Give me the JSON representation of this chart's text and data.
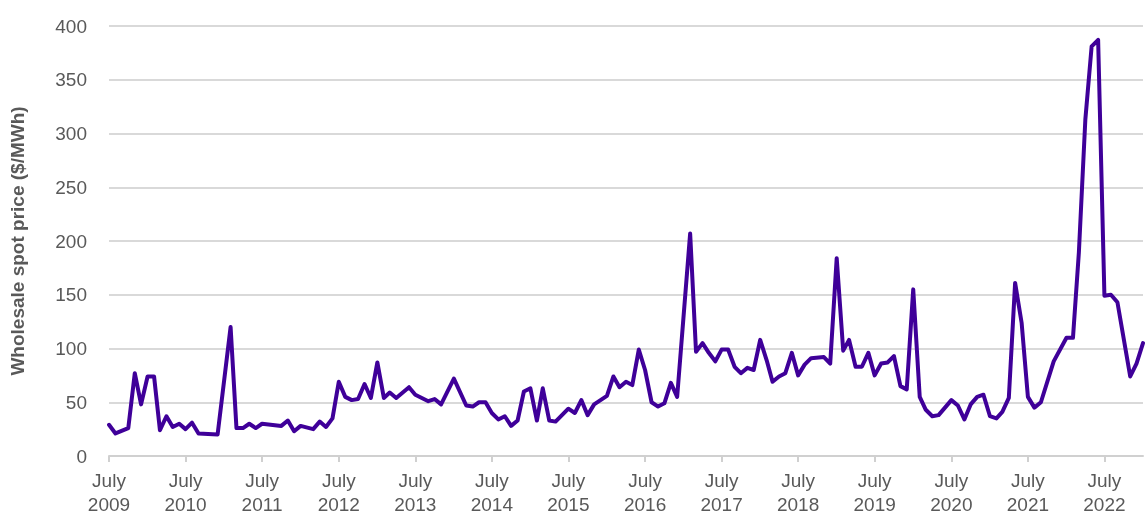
{
  "chart_data": {
    "type": "line",
    "ylabel": "Wholesale spot price ($/MWh)",
    "x": [
      "2009-07",
      "2009-08",
      "2009-10",
      "2009-11",
      "2009-12",
      "2010-01",
      "2010-02",
      "2010-03",
      "2010-04",
      "2010-05",
      "2010-06",
      "2010-07",
      "2010-08",
      "2010-09",
      "2010-12",
      "2011-02",
      "2011-03",
      "2011-04",
      "2011-05",
      "2011-06",
      "2011-07",
      "2011-10",
      "2011-11",
      "2011-12",
      "2012-01",
      "2012-03",
      "2012-04",
      "2012-05",
      "2012-06",
      "2012-07",
      "2012-08",
      "2012-09",
      "2012-10",
      "2012-11",
      "2012-12",
      "2013-01",
      "2013-02",
      "2013-03",
      "2013-04",
      "2013-06",
      "2013-07",
      "2013-09",
      "2013-10",
      "2013-11",
      "2014-01",
      "2014-03",
      "2014-04",
      "2014-05",
      "2014-06",
      "2014-07",
      "2014-08",
      "2014-09",
      "2014-10",
      "2014-11",
      "2014-12",
      "2015-01",
      "2015-02",
      "2015-03",
      "2015-04",
      "2015-05",
      "2015-07",
      "2015-08",
      "2015-09",
      "2015-10",
      "2015-11",
      "2016-01",
      "2016-02",
      "2016-03",
      "2016-04",
      "2016-05",
      "2016-06",
      "2016-07",
      "2016-08",
      "2016-09",
      "2016-10",
      "2016-11",
      "2016-12",
      "2017-02",
      "2017-03",
      "2017-04",
      "2017-05",
      "2017-06",
      "2017-07",
      "2017-08",
      "2017-09",
      "2017-10",
      "2017-11",
      "2017-12",
      "2018-01",
      "2018-02",
      "2018-03",
      "2018-04",
      "2018-05",
      "2018-06",
      "2018-07",
      "2018-08",
      "2018-09",
      "2018-11",
      "2018-12",
      "2019-01",
      "2019-02",
      "2019-03",
      "2019-04",
      "2019-05",
      "2019-06",
      "2019-07",
      "2019-08",
      "2019-09",
      "2019-10",
      "2019-11",
      "2019-12",
      "2020-01",
      "2020-02",
      "2020-03",
      "2020-04",
      "2020-05",
      "2020-07",
      "2020-08",
      "2020-09",
      "2020-10",
      "2020-11",
      "2020-12",
      "2021-01",
      "2021-02",
      "2021-03",
      "2021-04",
      "2021-05",
      "2021-06",
      "2021-07",
      "2021-08",
      "2021-09",
      "2021-11",
      "2022-01",
      "2022-02",
      "2022-03",
      "2022-04",
      "2022-05",
      "2022-06",
      "2022-07",
      "2022-08",
      "2022-09",
      "2022-11",
      "2022-12",
      "2023-01"
    ],
    "series": [
      {
        "color": "#3f0099",
        "values": [
          29,
          21,
          26,
          77,
          48,
          74,
          74,
          24,
          37,
          27,
          30,
          25,
          31,
          21,
          20,
          120,
          26,
          26,
          30,
          26,
          30,
          28,
          33,
          23,
          28,
          25,
          32,
          27,
          35,
          69,
          55,
          52,
          53,
          67,
          54,
          87,
          54,
          59,
          54,
          64,
          57,
          51,
          53,
          48,
          72,
          47,
          46,
          50,
          50,
          40,
          34,
          37,
          28,
          33,
          60,
          63,
          33,
          63,
          33,
          32,
          44,
          40,
          52,
          38,
          48,
          56,
          74,
          64,
          69,
          66,
          99,
          80,
          50,
          46,
          49,
          68,
          55,
          207,
          97,
          105,
          96,
          88,
          99,
          99,
          83,
          77,
          82,
          80,
          108,
          89,
          69,
          74,
          77,
          96,
          75,
          85,
          91,
          92,
          86,
          184,
          98,
          108,
          83,
          83,
          96,
          75,
          86,
          87,
          93,
          65,
          62,
          155,
          55,
          43,
          37,
          38,
          52,
          47,
          34,
          48,
          55,
          57,
          37,
          35,
          41,
          54,
          161,
          124,
          55,
          45,
          50,
          88,
          110,
          110,
          189,
          313,
          381,
          387,
          149,
          150,
          143,
          74,
          86,
          105
        ]
      }
    ],
    "xlim": [
      "2009-07",
      "2023-01"
    ],
    "xticks": [
      {
        "value": "2009-07",
        "label": "July\n2009"
      },
      {
        "value": "2010-07",
        "label": "July\n2010"
      },
      {
        "value": "2011-07",
        "label": "July\n2011"
      },
      {
        "value": "2012-07",
        "label": "July\n2012"
      },
      {
        "value": "2013-07",
        "label": "July\n2013"
      },
      {
        "value": "2014-07",
        "label": "July\n2014"
      },
      {
        "value": "2015-07",
        "label": "July\n2015"
      },
      {
        "value": "2016-07",
        "label": "July\n2016"
      },
      {
        "value": "2017-07",
        "label": "July\n2017"
      },
      {
        "value": "2018-07",
        "label": "July\n2018"
      },
      {
        "value": "2019-07",
        "label": "July\n2019"
      },
      {
        "value": "2020-07",
        "label": "July\n2020"
      },
      {
        "value": "2021-07",
        "label": "July\n2021"
      },
      {
        "value": "2022-07",
        "label": "July\n2022"
      }
    ],
    "ylim": [
      0,
      400
    ],
    "yticks": [
      0,
      50,
      100,
      150,
      200,
      250,
      300,
      350,
      400
    ],
    "grid": "y",
    "marker": "none",
    "line_style": "solid"
  }
}
